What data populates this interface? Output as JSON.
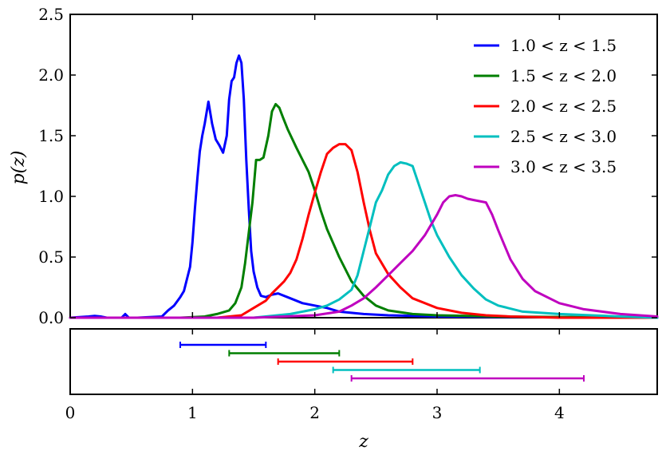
{
  "chart_data": [
    {
      "type": "line",
      "xlabel": "",
      "ylabel": "p(z)",
      "xlim": [
        0,
        4.8
      ],
      "ylim": [
        0,
        2.5
      ],
      "yticks": [
        "0.0",
        "0.5",
        "1.0",
        "1.5",
        "2.0",
        "2.5"
      ],
      "ytick_values": [
        0,
        0.5,
        1.0,
        1.5,
        2.0,
        2.5
      ],
      "grid": false,
      "legend_position": "top-right",
      "series": [
        {
          "name": "1.0 < z < 1.5",
          "color": "#0000ff",
          "x": [
            0.0,
            0.15,
            0.2,
            0.25,
            0.3,
            0.42,
            0.45,
            0.48,
            0.55,
            0.75,
            0.8,
            0.85,
            0.9,
            0.93,
            0.95,
            0.98,
            1.0,
            1.02,
            1.04,
            1.06,
            1.08,
            1.1,
            1.13,
            1.16,
            1.19,
            1.22,
            1.25,
            1.28,
            1.3,
            1.32,
            1.34,
            1.36,
            1.38,
            1.4,
            1.42,
            1.44,
            1.46,
            1.48,
            1.5,
            1.53,
            1.56,
            1.6,
            1.65,
            1.7,
            1.8,
            1.9,
            2.0,
            2.1,
            2.2,
            2.4,
            2.6,
            3.0,
            4.8
          ],
          "y": [
            0.0,
            0.01,
            0.015,
            0.01,
            0.0,
            0.0,
            0.03,
            0.0,
            0.0,
            0.01,
            0.06,
            0.1,
            0.17,
            0.22,
            0.3,
            0.42,
            0.62,
            0.9,
            1.15,
            1.37,
            1.5,
            1.6,
            1.78,
            1.6,
            1.47,
            1.42,
            1.36,
            1.5,
            1.8,
            1.95,
            1.98,
            2.1,
            2.16,
            2.1,
            1.8,
            1.3,
            0.9,
            0.55,
            0.38,
            0.25,
            0.18,
            0.17,
            0.19,
            0.2,
            0.16,
            0.12,
            0.1,
            0.08,
            0.05,
            0.03,
            0.02,
            0.01,
            0.0
          ]
        },
        {
          "name": "1.5 < z < 2.0",
          "color": "#007f00",
          "x": [
            0.0,
            0.9,
            1.1,
            1.2,
            1.3,
            1.35,
            1.4,
            1.43,
            1.46,
            1.49,
            1.52,
            1.55,
            1.58,
            1.62,
            1.65,
            1.68,
            1.71,
            1.74,
            1.78,
            1.85,
            1.95,
            2.0,
            2.05,
            2.1,
            2.2,
            2.3,
            2.4,
            2.5,
            2.6,
            2.8,
            3.0,
            3.5,
            4.8
          ],
          "y": [
            0.0,
            0.0,
            0.01,
            0.03,
            0.06,
            0.12,
            0.25,
            0.45,
            0.7,
            0.95,
            1.3,
            1.3,
            1.32,
            1.5,
            1.7,
            1.76,
            1.73,
            1.65,
            1.55,
            1.4,
            1.2,
            1.05,
            0.88,
            0.73,
            0.5,
            0.3,
            0.18,
            0.1,
            0.06,
            0.03,
            0.02,
            0.01,
            0.0
          ]
        },
        {
          "name": "2.0 < z < 2.5",
          "color": "#ff0000",
          "x": [
            0.0,
            1.2,
            1.4,
            1.5,
            1.6,
            1.65,
            1.7,
            1.75,
            1.8,
            1.85,
            1.9,
            1.95,
            2.0,
            2.05,
            2.1,
            2.15,
            2.2,
            2.25,
            2.3,
            2.35,
            2.4,
            2.45,
            2.5,
            2.6,
            2.7,
            2.8,
            3.0,
            3.2,
            3.4,
            3.6,
            4.0,
            4.8
          ],
          "y": [
            0.0,
            0.0,
            0.02,
            0.08,
            0.14,
            0.2,
            0.25,
            0.3,
            0.37,
            0.48,
            0.65,
            0.85,
            1.03,
            1.2,
            1.35,
            1.4,
            1.43,
            1.43,
            1.38,
            1.2,
            0.95,
            0.72,
            0.53,
            0.36,
            0.25,
            0.16,
            0.08,
            0.04,
            0.02,
            0.01,
            0.0,
            0.0
          ]
        },
        {
          "name": "2.5 < z < 3.0",
          "color": "#00bfbf",
          "x": [
            0.0,
            1.5,
            1.8,
            2.0,
            2.1,
            2.2,
            2.3,
            2.35,
            2.4,
            2.45,
            2.5,
            2.55,
            2.6,
            2.65,
            2.7,
            2.75,
            2.8,
            2.85,
            2.9,
            2.95,
            3.0,
            3.1,
            3.2,
            3.3,
            3.4,
            3.5,
            3.7,
            4.0,
            4.5,
            4.8
          ],
          "y": [
            0.0,
            0.0,
            0.03,
            0.07,
            0.1,
            0.15,
            0.23,
            0.35,
            0.55,
            0.75,
            0.95,
            1.05,
            1.18,
            1.25,
            1.28,
            1.27,
            1.25,
            1.1,
            0.95,
            0.8,
            0.68,
            0.5,
            0.35,
            0.24,
            0.15,
            0.1,
            0.05,
            0.03,
            0.01,
            0.0
          ]
        },
        {
          "name": "3.0 < z < 3.5",
          "color": "#bf00bf",
          "x": [
            0.0,
            1.5,
            2.0,
            2.2,
            2.3,
            2.4,
            2.5,
            2.6,
            2.7,
            2.8,
            2.9,
            3.0,
            3.05,
            3.1,
            3.15,
            3.2,
            3.25,
            3.3,
            3.35,
            3.4,
            3.45,
            3.5,
            3.55,
            3.6,
            3.7,
            3.8,
            4.0,
            4.2,
            4.5,
            4.8
          ],
          "y": [
            0.0,
            0.0,
            0.02,
            0.05,
            0.1,
            0.16,
            0.25,
            0.35,
            0.45,
            0.55,
            0.68,
            0.85,
            0.95,
            1.0,
            1.01,
            1.0,
            0.98,
            0.97,
            0.96,
            0.95,
            0.85,
            0.72,
            0.6,
            0.48,
            0.32,
            0.22,
            0.12,
            0.07,
            0.03,
            0.01
          ]
        }
      ]
    },
    {
      "type": "interval",
      "xlabel": "z",
      "xlim": [
        0,
        4.8
      ],
      "xticks": [
        "0",
        "1",
        "2",
        "3",
        "4"
      ],
      "xtick_values": [
        0,
        1,
        2,
        3,
        4
      ],
      "intervals": [
        {
          "series": "1.0 < z < 1.5",
          "color": "#0000ff",
          "low": 0.9,
          "high": 1.6
        },
        {
          "series": "1.5 < z < 2.0",
          "color": "#007f00",
          "low": 1.3,
          "high": 2.2
        },
        {
          "series": "2.0 < z < 2.5",
          "color": "#ff0000",
          "low": 1.7,
          "high": 2.8
        },
        {
          "series": "2.5 < z < 3.0",
          "color": "#00bfbf",
          "low": 2.15,
          "high": 3.35
        },
        {
          "series": "3.0 < z < 3.5",
          "color": "#bf00bf",
          "low": 2.3,
          "high": 4.2
        }
      ]
    }
  ]
}
